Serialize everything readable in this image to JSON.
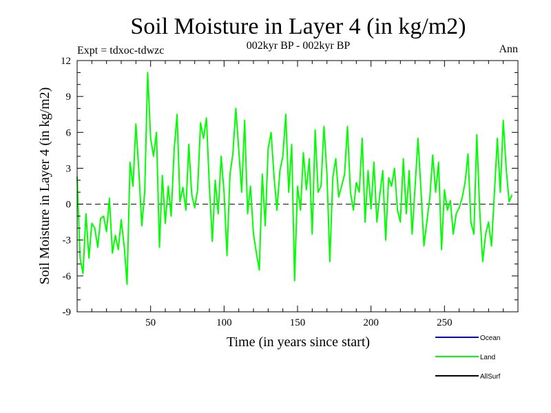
{
  "header": {
    "title": "Soil Moisture in Layer 4 (in kg/m2)",
    "expt": "Expt = tdxoc-tdwzc",
    "period": "002kyr BP - 002kyr BP",
    "season": "Ann"
  },
  "chart_data": {
    "type": "line",
    "title": "Soil Moisture in Layer 4 (in kg/m2)",
    "xlabel": "Time (in years since start)",
    "ylabel": "Soil Moisture in Layer 4 (in kg/m2)",
    "xlim": [
      0,
      300
    ],
    "ylim": [
      -9,
      12
    ],
    "x_ticks": [
      50,
      100,
      150,
      200,
      250
    ],
    "y_ticks": [
      -9,
      -6,
      -3,
      0,
      3,
      6,
      9,
      12
    ],
    "zero_line": true,
    "grid": false,
    "legend_position": "bottom-right",
    "legend": [
      {
        "name": "Ocean",
        "color": "#0000ff"
      },
      {
        "name": "Land",
        "color": "#00ff00"
      },
      {
        "name": "AllSurf",
        "color": "#000000"
      }
    ],
    "series": [
      {
        "name": "Land",
        "color": "#00ff00",
        "x_start": 0,
        "x_step": 2,
        "values": [
          2.3,
          -4.5,
          -5.8,
          -0.8,
          -4.5,
          -1.6,
          -2.0,
          -3.6,
          -1.2,
          -1.0,
          -2.3,
          0.5,
          -4.1,
          -2.6,
          -3.8,
          -1.3,
          -3.5,
          -6.7,
          3.5,
          1.5,
          6.7,
          2.8,
          -1.8,
          1.0,
          11.0,
          5.5,
          4.0,
          6.0,
          -3.6,
          2.4,
          -1.6,
          1.5,
          -1.0,
          4.5,
          7.5,
          0.2,
          1.4,
          -0.5,
          5.0,
          0.8,
          -0.3,
          1.2,
          6.8,
          5.5,
          7.2,
          1.5,
          -3.1,
          2.0,
          -0.8,
          4.0,
          1.0,
          -4.3,
          2.5,
          4.2,
          8.0,
          4.5,
          1.0,
          7.0,
          -0.8,
          1.5,
          -2.5,
          -4.1,
          -5.5,
          2.5,
          -1.8,
          4.6,
          6.0,
          2.3,
          -0.5,
          2.8,
          4.0,
          7.5,
          1.0,
          5.0,
          -6.4,
          1.5,
          -0.5,
          4.3,
          1.2,
          3.8,
          -2.5,
          6.2,
          1.0,
          1.5,
          6.5,
          2.5,
          -4.8,
          2.2,
          3.8,
          0.6,
          1.5,
          2.5,
          6.5,
          1.0,
          -0.5,
          1.8,
          1.0,
          5.5,
          -1.5,
          2.8,
          -0.4,
          3.5,
          -1.5,
          0.8,
          2.8,
          -3.0,
          2.2,
          1.5,
          3.0,
          -0.5,
          -1.5,
          3.8,
          -0.8,
          2.8,
          -2.5,
          1.5,
          5.5,
          1.2,
          -3.5,
          -1.5,
          0.5,
          4.1,
          1.0,
          3.5,
          -3.8,
          1.2,
          -0.5,
          0.3,
          -2.5,
          -0.8,
          -0.3,
          0.5,
          1.8,
          4.2,
          -1.5,
          -2.5,
          5.8,
          -0.5,
          -4.8,
          -2.5,
          -1.5,
          -3.5,
          1.0,
          5.5,
          1.0,
          7.0,
          3.0,
          0.2,
          0.8
        ]
      }
    ]
  }
}
